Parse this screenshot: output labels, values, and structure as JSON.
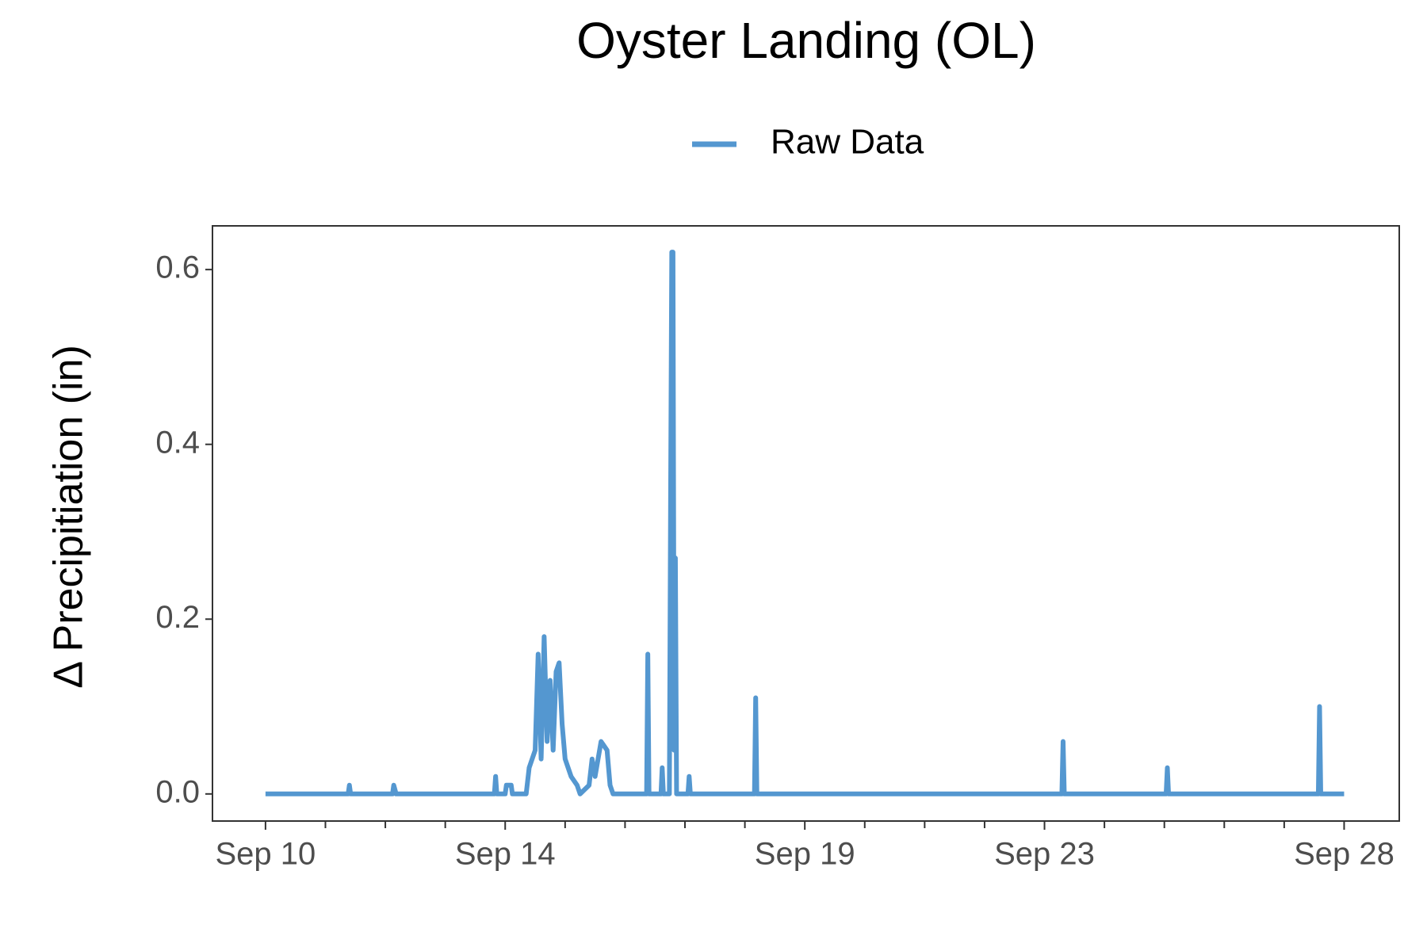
{
  "chart_data": {
    "type": "line",
    "title": "Oyster Landing (OL)",
    "y_label": "Δ Precipitiation (in)",
    "x": [
      10.0,
      11.38,
      11.4,
      11.42,
      12.12,
      12.14,
      12.18,
      13.82,
      13.84,
      13.86,
      14.0,
      14.02,
      14.1,
      14.12,
      14.35,
      14.4,
      14.5,
      14.55,
      14.6,
      14.65,
      14.7,
      14.75,
      14.8,
      14.85,
      14.9,
      14.95,
      15.0,
      15.05,
      15.1,
      15.2,
      15.25,
      15.4,
      15.45,
      15.5,
      15.6,
      15.7,
      15.75,
      15.8,
      16.36,
      16.38,
      16.4,
      16.6,
      16.62,
      16.64,
      16.74,
      16.76,
      16.78,
      16.8,
      16.82,
      16.84,
      16.86,
      17.05,
      17.07,
      17.09,
      18.16,
      18.18,
      18.2,
      23.29,
      23.31,
      23.33,
      25.03,
      25.05,
      25.07,
      27.57,
      27.59,
      27.61,
      28.0
    ],
    "series": [
      {
        "name": "Raw Data",
        "color": "#5497d0",
        "values": [
          0,
          0,
          0.01,
          0,
          0,
          0.01,
          0,
          0,
          0.02,
          0,
          0,
          0.01,
          0.01,
          0,
          0,
          0.03,
          0.05,
          0.16,
          0.04,
          0.18,
          0.06,
          0.13,
          0.05,
          0.14,
          0.15,
          0.08,
          0.04,
          0.03,
          0.02,
          0.01,
          0,
          0.01,
          0.04,
          0.02,
          0.06,
          0.05,
          0.01,
          0,
          0,
          0.16,
          0,
          0,
          0.03,
          0,
          0,
          0.33,
          0.62,
          0.62,
          0.05,
          0.27,
          0,
          0,
          0.02,
          0,
          0,
          0.11,
          0,
          0,
          0.06,
          0,
          0,
          0.03,
          0,
          0,
          0.1,
          0,
          0
        ]
      }
    ],
    "xlim": [
      9.115,
      28.92
    ],
    "xticks": [
      {
        "value": 10,
        "label": "Sep 10"
      },
      {
        "value": 14,
        "label": "Sep 14"
      },
      {
        "value": 19,
        "label": "Sep 19"
      },
      {
        "value": 23,
        "label": "Sep 23"
      },
      {
        "value": 28,
        "label": "Sep 28"
      }
    ],
    "xminorticks": [
      11,
      12,
      13,
      15,
      16,
      17,
      18,
      20,
      21,
      22,
      24,
      25,
      26,
      27
    ],
    "ylim": [
      -0.031,
      0.65
    ],
    "yticks": [
      {
        "value": 0,
        "label": "0.0"
      },
      0.2,
      0.4,
      0.6
    ],
    "legend": "top"
  }
}
